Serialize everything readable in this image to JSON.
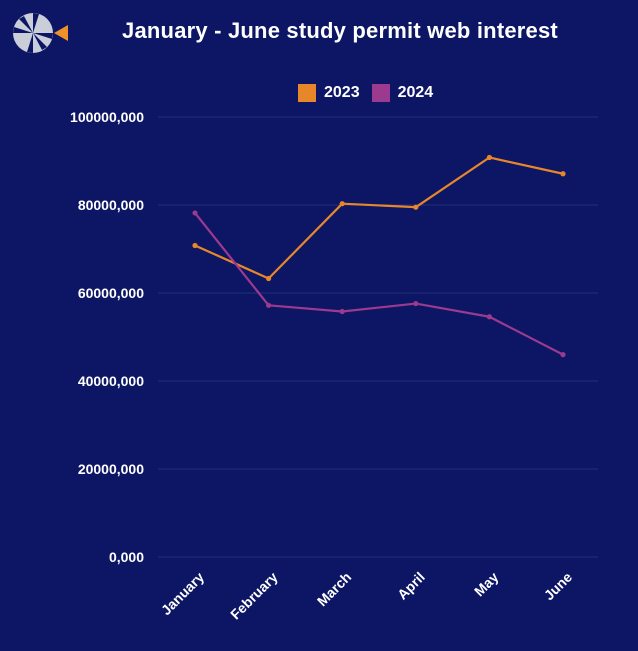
{
  "logo": {
    "icon": "pinwheel-logo-icon",
    "colors": [
      "#c9ced9",
      "#f0902a"
    ]
  },
  "colors": {
    "background": "#0c1664",
    "grid": "#24307a",
    "series_2023": "#e8872a",
    "series_2024": "#9b3a8f",
    "text": "#ffffff"
  },
  "chart_data": {
    "type": "line",
    "title": "January - June study permit web interest",
    "xlabel": "",
    "ylabel": "",
    "categories": [
      "January",
      "February",
      "March",
      "April",
      "May",
      "June"
    ],
    "series": [
      {
        "name": "2023",
        "values": [
          70800000,
          63300000,
          80300000,
          79500000,
          90800000,
          87100000
        ]
      },
      {
        "name": "2024",
        "values": [
          78200000,
          57200000,
          55800000,
          57600000,
          54600000,
          46000000
        ]
      }
    ],
    "ylim": [
      0,
      100000000
    ],
    "yticks": [
      0,
      20000000,
      40000000,
      60000000,
      80000000,
      100000000
    ],
    "ytick_labels": [
      "0,000",
      "20000,000",
      "40000,000",
      "60000,000",
      "80000,000",
      "100000,000"
    ],
    "grid": true,
    "legend_position": "top"
  }
}
